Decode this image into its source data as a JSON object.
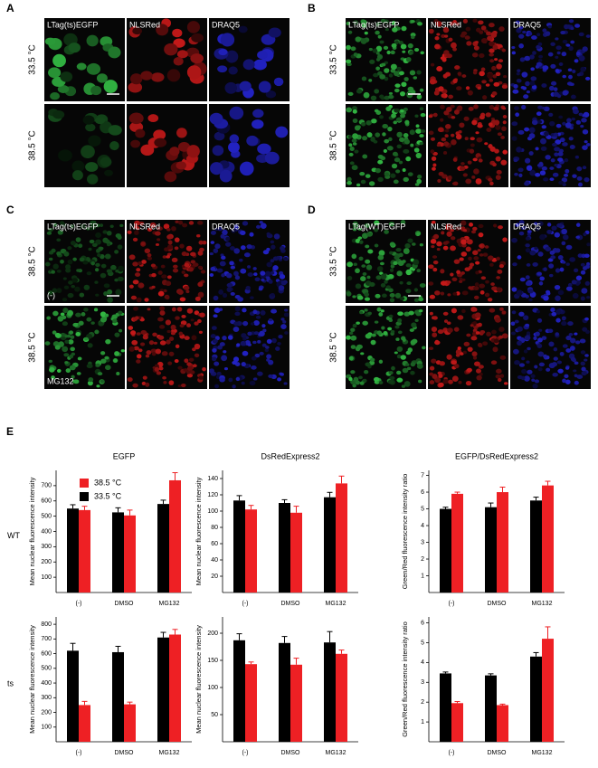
{
  "panels": [
    {
      "letter": "A",
      "channels": [
        "LTag(ts)EGFP",
        "NLSRed",
        "DRAQ5"
      ],
      "rows": [
        "33.5 °C",
        "38.5 °C"
      ]
    },
    {
      "letter": "B",
      "channels": [
        "LTag(ts)EGFP",
        "NLSRed",
        "DRAQ5"
      ],
      "rows": [
        "33.5 °C",
        "38.5 °C"
      ]
    },
    {
      "letter": "C",
      "channels": [
        "LTag(ts)EGFP",
        "NLSRed",
        "DRAQ5"
      ],
      "rows": [
        "38.5 °C",
        "38.5 °C"
      ],
      "notes": [
        "(-)",
        "MG132"
      ]
    },
    {
      "letter": "D",
      "channels": [
        "LTag(WT)EGFP",
        "NLSRed",
        "DRAQ5"
      ],
      "rows": [
        "33.5 °C",
        "38.5 °C"
      ]
    }
  ],
  "panel_e": {
    "letter": "E",
    "column_titles": [
      "EGFP",
      "DsRedExpress2",
      "EGFP/DsRedExpress2"
    ],
    "row_labels": [
      "WT",
      "ts"
    ]
  },
  "chart_data": [
    {
      "type": "bar",
      "ylabel": "Mean nuclear fluorescence intensity",
      "categories": [
        "(-)",
        "DMSO",
        "MG132"
      ],
      "ylim": [
        0,
        800
      ],
      "yticks": [
        100,
        200,
        300,
        400,
        500,
        600,
        700
      ],
      "series": [
        {
          "name": "33.5 °C",
          "color": "#000000",
          "values": [
            550,
            525,
            580
          ],
          "errors": [
            25,
            30,
            25
          ]
        },
        {
          "name": "38.5 °C",
          "color": "#ee2024",
          "values": [
            540,
            505,
            735
          ],
          "errors": [
            25,
            35,
            50
          ]
        }
      ]
    },
    {
      "type": "bar",
      "ylabel": "Mean nuclear fluorescence intensity",
      "categories": [
        "(-)",
        "DMSO",
        "MG132"
      ],
      "ylim": [
        0,
        150
      ],
      "yticks": [
        20,
        40,
        60,
        80,
        100,
        120,
        140
      ],
      "series": [
        {
          "color": "#000000",
          "values": [
            113,
            110,
            117
          ],
          "errors": [
            6,
            4,
            6
          ]
        },
        {
          "color": "#ee2024",
          "values": [
            102,
            98,
            134
          ],
          "errors": [
            5,
            8,
            9
          ]
        }
      ]
    },
    {
      "type": "bar",
      "ylabel": "Green/Red  fluorescence intensity ratio",
      "categories": [
        "(-)",
        "DMSO",
        "MG132"
      ],
      "ylim": [
        0,
        7.3
      ],
      "yticks": [
        1,
        2,
        3,
        4,
        5,
        6,
        7
      ],
      "series": [
        {
          "color": "#000000",
          "values": [
            5.0,
            5.1,
            5.5
          ],
          "errors": [
            0.1,
            0.25,
            0.2
          ]
        },
        {
          "color": "#ee2024",
          "values": [
            5.9,
            6.0,
            6.4
          ],
          "errors": [
            0.1,
            0.3,
            0.25
          ]
        }
      ]
    },
    {
      "type": "bar",
      "ylabel": "Mean nuclear fluorescence intensity",
      "categories": [
        "(-)",
        "DMSO",
        "MG132"
      ],
      "ylim": [
        0,
        850
      ],
      "yticks": [
        100,
        200,
        300,
        400,
        500,
        600,
        700,
        800
      ],
      "series": [
        {
          "color": "#000000",
          "values": [
            620,
            610,
            710
          ],
          "errors": [
            50,
            40,
            35
          ]
        },
        {
          "color": "#ee2024",
          "values": [
            250,
            255,
            730
          ],
          "errors": [
            25,
            15,
            35
          ]
        }
      ]
    },
    {
      "type": "bar",
      "ylabel": "Mean nuclear fluorescence intensity",
      "categories": [
        "(-)",
        "DMSO",
        "MG132"
      ],
      "ylim": [
        0,
        230
      ],
      "yticks": [
        50,
        100,
        150,
        200
      ],
      "series": [
        {
          "color": "#000000",
          "values": [
            187,
            182,
            183
          ],
          "errors": [
            12,
            12,
            20
          ]
        },
        {
          "color": "#ee2024",
          "values": [
            143,
            142,
            162
          ],
          "errors": [
            4,
            12,
            7
          ]
        }
      ]
    },
    {
      "type": "bar",
      "ylabel": "Green/Red  fluorescence intensity ratio",
      "categories": [
        "(-)",
        "DMSO",
        "MG132"
      ],
      "ylim": [
        0,
        6.3
      ],
      "yticks": [
        1,
        2,
        3,
        4,
        5,
        6
      ],
      "series": [
        {
          "color": "#000000",
          "values": [
            3.45,
            3.35,
            4.3
          ],
          "errors": [
            0.07,
            0.08,
            0.2
          ]
        },
        {
          "color": "#ee2024",
          "values": [
            1.95,
            1.85,
            5.2
          ],
          "errors": [
            0.08,
            0.05,
            0.6
          ]
        }
      ]
    }
  ]
}
